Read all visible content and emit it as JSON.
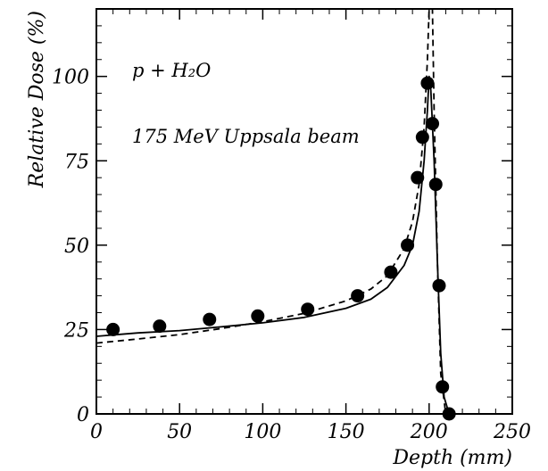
{
  "chart_data": {
    "type": "line",
    "title": "",
    "xlabel": "Depth (mm)",
    "ylabel": "Relative Dose (%)",
    "xlim": [
      0,
      250
    ],
    "ylim": [
      0,
      120
    ],
    "grid": false,
    "xticks": [
      0,
      50,
      100,
      150,
      200,
      250
    ],
    "yticks": [
      0,
      25,
      50,
      75,
      100
    ],
    "xtick_labels": [
      "0",
      "50",
      "100",
      "150",
      "200",
      "250"
    ],
    "ytick_labels": [
      "0",
      "25",
      "50",
      "75",
      "100"
    ],
    "annotations": [
      "p + H₂O",
      "175 MeV Uppsala beam"
    ],
    "series": [
      {
        "style": "markers",
        "x": [
          10,
          38,
          68,
          97,
          127,
          157,
          177,
          187,
          193,
          196,
          199,
          202,
          204,
          206,
          208,
          212
        ],
        "y": [
          25,
          26,
          28,
          29,
          31,
          35,
          42,
          50,
          70,
          82,
          98,
          86,
          68,
          38,
          8,
          0
        ]
      },
      {
        "style": "solid",
        "x": [
          0,
          25,
          50,
          75,
          100,
          125,
          150,
          165,
          175,
          185,
          190,
          194,
          197,
          199,
          200,
          201,
          203,
          205,
          207,
          209,
          212
        ],
        "y": [
          23,
          24,
          24.7,
          25.8,
          27,
          28.6,
          31.3,
          34,
          37.5,
          44,
          50,
          60,
          75,
          90,
          100,
          96,
          75,
          45,
          18,
          5,
          0
        ]
      },
      {
        "style": "dashed",
        "x": [
          0,
          25,
          50,
          75,
          100,
          125,
          150,
          165,
          175,
          185,
          190,
          194,
          197,
          199,
          200,
          201,
          202,
          203,
          205,
          207,
          210
        ],
        "y": [
          21,
          22.2,
          23.5,
          25.3,
          27.3,
          29.8,
          33.5,
          37,
          41,
          49,
          57,
          68,
          85,
          105,
          120,
          120,
          120,
          90,
          45,
          12,
          0
        ]
      }
    ]
  }
}
